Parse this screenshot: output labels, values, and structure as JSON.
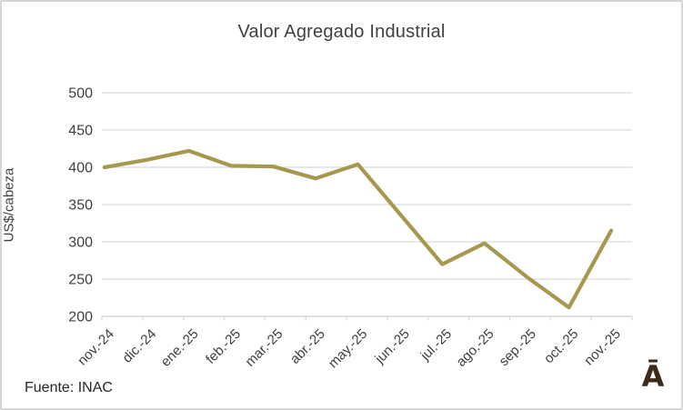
{
  "chart_data": {
    "type": "line",
    "title": "Valor Agregado Industrial",
    "ylabel": "US$/cabeza",
    "xlabel": "",
    "categories": [
      "nov.-24",
      "dic.-24",
      "ene.-25",
      "feb.-25",
      "mar.-25",
      "abr.-25",
      "may.-25",
      "jun.-25",
      "jul.-25",
      "ago.-25",
      "sep.-25",
      "oct.-25",
      "nov.-25"
    ],
    "values": [
      400,
      410,
      422,
      402,
      401,
      385,
      404,
      337,
      270,
      298,
      253,
      212,
      315
    ],
    "ylim": [
      200,
      500
    ],
    "yticks": [
      200,
      250,
      300,
      350,
      400,
      450,
      500
    ],
    "grid": "horizontal",
    "legend": "none"
  },
  "footer": {
    "source": "Fuente: INAC",
    "logo_glyph": "Ā"
  },
  "colors": {
    "line": "#A6994F",
    "grid": "#DCDADA",
    "axis": "#D9D7D7",
    "tick_text": "#404040",
    "title_text": "#404040",
    "logo": "#3C2A1A"
  }
}
